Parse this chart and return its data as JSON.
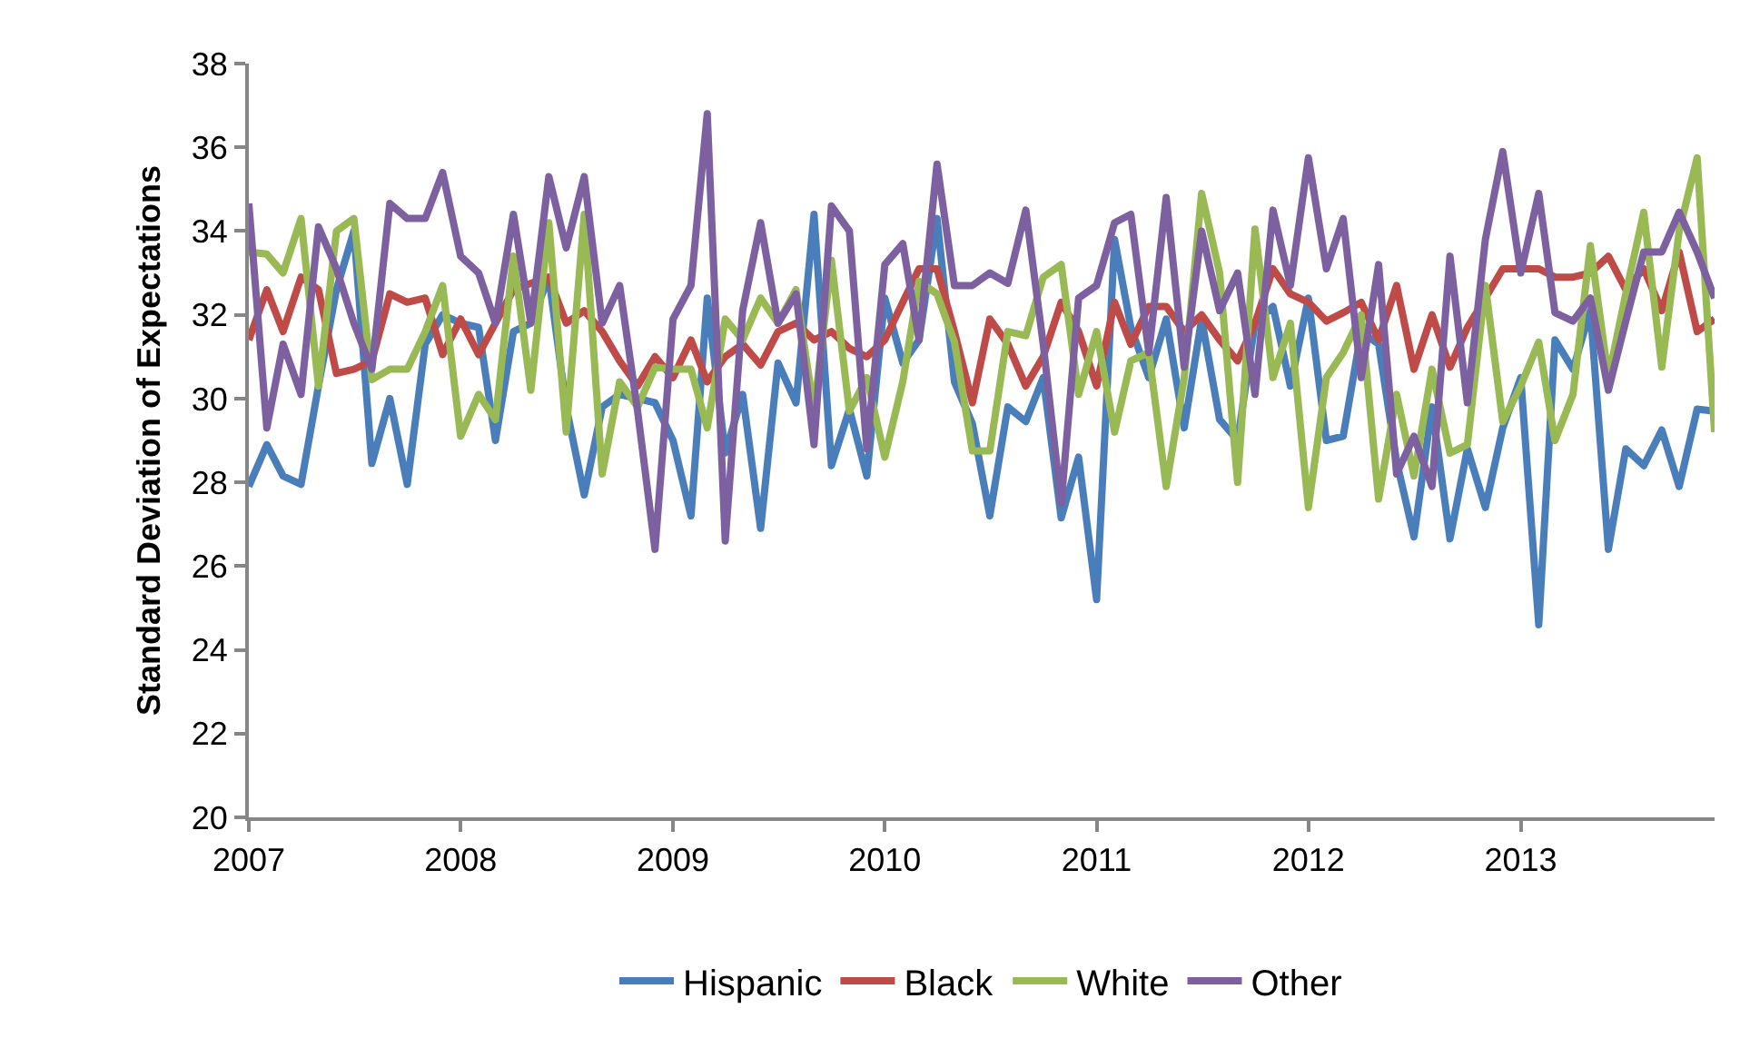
{
  "chart_data": {
    "type": "line",
    "ylabel": "Standard Deviation of Expectations",
    "x": [
      "2007-01",
      "2007-02",
      "2007-03",
      "2007-04",
      "2007-05",
      "2007-06",
      "2007-07",
      "2007-08",
      "2007-09",
      "2007-10",
      "2007-11",
      "2007-12",
      "2008-01",
      "2008-02",
      "2008-03",
      "2008-04",
      "2008-05",
      "2008-06",
      "2008-07",
      "2008-08",
      "2008-09",
      "2008-10",
      "2008-11",
      "2008-12",
      "2009-01",
      "2009-02",
      "2009-03",
      "2009-04",
      "2009-05",
      "2009-06",
      "2009-07",
      "2009-08",
      "2009-09",
      "2009-10",
      "2009-11",
      "2009-12",
      "2010-01",
      "2010-02",
      "2010-03",
      "2010-04",
      "2010-05",
      "2010-06",
      "2010-07",
      "2010-08",
      "2010-09",
      "2010-10",
      "2010-11",
      "2010-12",
      "2011-01",
      "2011-02",
      "2011-03",
      "2011-04",
      "2011-05",
      "2011-06",
      "2011-07",
      "2011-08",
      "2011-09",
      "2011-10",
      "2011-11",
      "2011-12",
      "2012-01",
      "2012-02",
      "2012-03",
      "2012-04",
      "2012-05",
      "2012-06",
      "2012-07",
      "2012-08",
      "2012-09",
      "2012-10",
      "2012-11",
      "2012-12",
      "2013-01",
      "2013-02",
      "2013-03",
      "2013-04",
      "2013-05",
      "2013-06",
      "2013-07",
      "2013-08",
      "2013-09",
      "2013-10",
      "2013-11",
      "2013-12"
    ],
    "series": [
      {
        "name": "Hispanic",
        "color": "#4a7ebb",
        "values": [
          27.9,
          28.9,
          28.15,
          27.95,
          30.3,
          32.6,
          34.0,
          28.45,
          30.0,
          27.95,
          31.3,
          32.0,
          31.8,
          31.7,
          29.0,
          31.6,
          31.8,
          32.9,
          29.8,
          27.7,
          29.8,
          30.1,
          30.0,
          29.9,
          29.0,
          27.2,
          32.4,
          28.7,
          30.1,
          26.9,
          30.85,
          29.9,
          34.4,
          28.4,
          29.75,
          28.15,
          32.4,
          30.85,
          31.4,
          34.3,
          30.4,
          29.4,
          27.2,
          29.8,
          29.45,
          30.5,
          27.15,
          28.6,
          25.2,
          33.8,
          31.7,
          30.5,
          31.9,
          29.3,
          31.9,
          29.5,
          29.0,
          31.8,
          32.2,
          30.3,
          32.4,
          29.0,
          29.1,
          31.6,
          31.3,
          28.5,
          26.7,
          29.8,
          26.65,
          28.8,
          27.4,
          29.3,
          30.5,
          24.6,
          31.4,
          30.7,
          32.1,
          26.4,
          28.8,
          28.4,
          29.25,
          27.9,
          29.75,
          29.7
        ]
      },
      {
        "name": "Black",
        "color": "#be4b48",
        "values": [
          31.4,
          32.6,
          31.6,
          32.9,
          32.6,
          30.6,
          30.7,
          30.9,
          32.5,
          32.3,
          32.4,
          31.05,
          31.9,
          31.05,
          31.8,
          32.6,
          32.75,
          32.9,
          31.8,
          32.1,
          31.6,
          30.9,
          30.3,
          31.0,
          30.5,
          31.4,
          30.4,
          31.0,
          31.3,
          30.8,
          31.6,
          31.8,
          31.4,
          31.6,
          31.2,
          31.0,
          31.4,
          32.3,
          33.1,
          33.1,
          31.6,
          29.9,
          31.9,
          31.3,
          30.3,
          31.0,
          32.3,
          31.6,
          30.3,
          32.3,
          31.3,
          32.2,
          32.2,
          31.6,
          32.0,
          31.4,
          30.9,
          31.8,
          33.1,
          32.5,
          32.3,
          31.85,
          32.05,
          32.3,
          31.4,
          32.7,
          30.7,
          32.0,
          30.75,
          31.7,
          32.4,
          33.1,
          33.1,
          33.1,
          32.9,
          32.9,
          33.0,
          33.4,
          32.6,
          33.1,
          32.1,
          33.5,
          31.6,
          31.9
        ]
      },
      {
        "name": "White",
        "color": "#98b954",
        "values": [
          33.5,
          33.45,
          33.0,
          34.3,
          30.3,
          34.0,
          34.3,
          30.45,
          30.7,
          30.7,
          31.6,
          32.7,
          29.1,
          30.1,
          29.5,
          33.4,
          30.2,
          34.2,
          29.2,
          34.4,
          28.2,
          30.4,
          29.8,
          30.75,
          30.7,
          30.7,
          29.3,
          31.9,
          31.4,
          32.4,
          31.8,
          32.6,
          29.7,
          33.3,
          29.7,
          30.5,
          28.6,
          30.4,
          32.8,
          32.5,
          31.35,
          28.75,
          28.75,
          31.6,
          31.5,
          32.9,
          33.2,
          30.1,
          31.6,
          29.2,
          30.9,
          31.1,
          27.9,
          30.5,
          34.9,
          33.0,
          28.0,
          34.05,
          30.5,
          31.8,
          27.4,
          30.5,
          31.1,
          32.0,
          27.6,
          30.1,
          28.15,
          30.7,
          28.7,
          28.9,
          32.7,
          29.45,
          30.3,
          31.35,
          29.0,
          30.1,
          33.65,
          30.5,
          32.5,
          34.45,
          30.75,
          34.0,
          35.75,
          29.2
        ]
      },
      {
        "name": "Other",
        "color": "#7d60a0",
        "values": [
          34.66,
          29.3,
          31.3,
          30.1,
          34.1,
          33.1,
          31.8,
          30.7,
          34.66,
          34.3,
          34.3,
          35.4,
          33.4,
          33.0,
          31.8,
          34.4,
          31.8,
          35.3,
          33.6,
          35.3,
          31.8,
          32.7,
          29.7,
          26.4,
          31.9,
          32.7,
          36.8,
          26.6,
          32.1,
          34.2,
          31.8,
          32.5,
          28.9,
          34.6,
          34.0,
          28.8,
          33.2,
          33.7,
          31.4,
          35.6,
          32.7,
          32.7,
          33.0,
          32.75,
          34.5,
          31.3,
          27.5,
          32.4,
          32.7,
          34.2,
          34.4,
          31.1,
          34.8,
          30.75,
          34.0,
          32.1,
          33.0,
          30.1,
          34.5,
          32.7,
          35.75,
          33.1,
          34.3,
          30.5,
          33.2,
          28.2,
          29.1,
          27.9,
          33.4,
          29.9,
          33.8,
          35.9,
          33.0,
          34.9,
          32.05,
          31.85,
          32.4,
          30.2,
          31.85,
          33.5,
          33.5,
          34.45,
          33.5,
          32.4
        ]
      }
    ],
    "xlim": [
      "2007-01",
      "2013-12"
    ],
    "xticks": [
      "2007",
      "2008",
      "2009",
      "2010",
      "2011",
      "2012",
      "2013"
    ],
    "ylim": [
      20,
      38
    ],
    "yticks": [
      20,
      22,
      24,
      26,
      28,
      30,
      32,
      34,
      36,
      38
    ],
    "grid": false,
    "legend": "bottom",
    "marker": "none",
    "line_style": "solid"
  }
}
